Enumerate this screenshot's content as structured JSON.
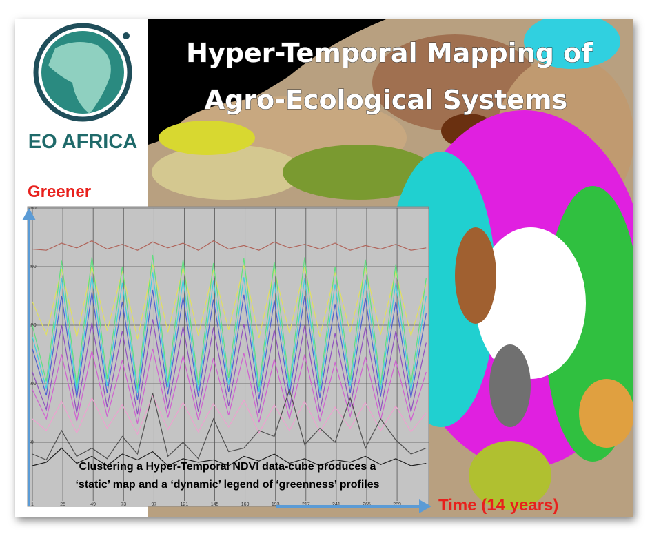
{
  "logo": {
    "text": "EO AFRICA"
  },
  "title": {
    "line1": "Hyper-Temporal Mapping of",
    "line2": "Agro-Ecological Systems"
  },
  "chart_data": {
    "type": "line",
    "y_label": "Greener",
    "x_label": "Time (14 years)",
    "annotations": [
      "Clustering a Hyper-Temporal NDVI data-cube produces a",
      "‘static’ map and a ‘dynamic’ legend of ‘greenness’ profiles"
    ],
    "x": [
      1,
      12,
      24,
      36,
      48,
      60,
      72,
      84,
      96,
      108,
      120,
      132,
      144,
      156,
      168,
      180,
      192,
      204,
      216,
      228,
      240,
      252,
      264,
      276,
      288,
      300,
      312
    ],
    "xlim": [
      1,
      314
    ],
    "ylim": [
      0,
      250
    ],
    "xticks": [
      1,
      25,
      49,
      73,
      97,
      121,
      145,
      169,
      193,
      217,
      241,
      265,
      289
    ],
    "yticks": [
      50,
      100,
      150,
      200,
      250
    ],
    "grid": true,
    "series": [
      {
        "color": "#b0645a",
        "values": [
          215,
          214,
          220,
          216,
          222,
          215,
          219,
          214,
          221,
          216,
          220,
          214,
          222,
          215,
          218,
          214,
          221,
          216,
          219,
          215,
          220,
          214,
          218,
          215,
          219,
          214,
          216
        ]
      },
      {
        "color": "#e0e060",
        "values": [
          170,
          142,
          198,
          140,
          200,
          145,
          196,
          138,
          202,
          144,
          199,
          141,
          197,
          146,
          201,
          139,
          198,
          143,
          200,
          140,
          195,
          144,
          199,
          142,
          196,
          141,
          185
        ]
      },
      {
        "color": "#60e080",
        "values": [
          150,
          102,
          205,
          98,
          208,
          104,
          200,
          96,
          210,
          101,
          206,
          99,
          203,
          105,
          207,
          97,
          204,
          100,
          208,
          98,
          200,
          103,
          206,
          99,
          202,
          100,
          190
        ]
      },
      {
        "color": "#40d0e0",
        "values": [
          140,
          96,
          190,
          93,
          192,
          98,
          186,
          92,
          195,
          97,
          189,
          94,
          188,
          99,
          191,
          93,
          187,
          96,
          190,
          94,
          185,
          98,
          189,
          95,
          186,
          94,
          175
        ]
      },
      {
        "color": "#5060d0",
        "values": [
          130,
          90,
          175,
          88,
          178,
          92,
          170,
          86,
          180,
          91,
          174,
          89,
          172,
          93,
          176,
          87,
          171,
          90,
          175,
          88,
          168,
          92,
          173,
          89,
          170,
          88,
          160
        ]
      },
      {
        "color": "#9050c0",
        "values": [
          110,
          78,
          150,
          75,
          152,
          80,
          145,
          74,
          155,
          79,
          149,
          76,
          148,
          81,
          151,
          75,
          146,
          78,
          150,
          76,
          143,
          80,
          148,
          77,
          145,
          76,
          135
        ]
      },
      {
        "color": "#d060d0",
        "values": [
          95,
          70,
          125,
          68,
          128,
          72,
          120,
          66,
          130,
          71,
          124,
          69,
          122,
          73,
          126,
          67,
          121,
          70,
          125,
          68,
          118,
          72,
          123,
          69,
          120,
          68,
          110
        ]
      },
      {
        "color": "#f0a0d0",
        "values": [
          70,
          60,
          85,
          58,
          88,
          62,
          82,
          57,
          90,
          61,
          84,
          59,
          83,
          63,
          86,
          58,
          82,
          60,
          85,
          59,
          80,
          62,
          84,
          60,
          81,
          59,
          75
        ]
      },
      {
        "color": "#505050",
        "values": [
          40,
          35,
          60,
          38,
          45,
          36,
          55,
          40,
          92,
          38,
          50,
          36,
          70,
          42,
          45,
          60,
          55,
          95,
          48,
          62,
          50,
          88,
          45,
          70,
          52,
          40,
          45
        ]
      },
      {
        "color": "#202020",
        "values": [
          30,
          33,
          45,
          32,
          38,
          30,
          40,
          35,
          42,
          30,
          36,
          33,
          35,
          30,
          38,
          34,
          40,
          32,
          36,
          30,
          35,
          33,
          38,
          31,
          36,
          30,
          32
        ]
      }
    ]
  }
}
